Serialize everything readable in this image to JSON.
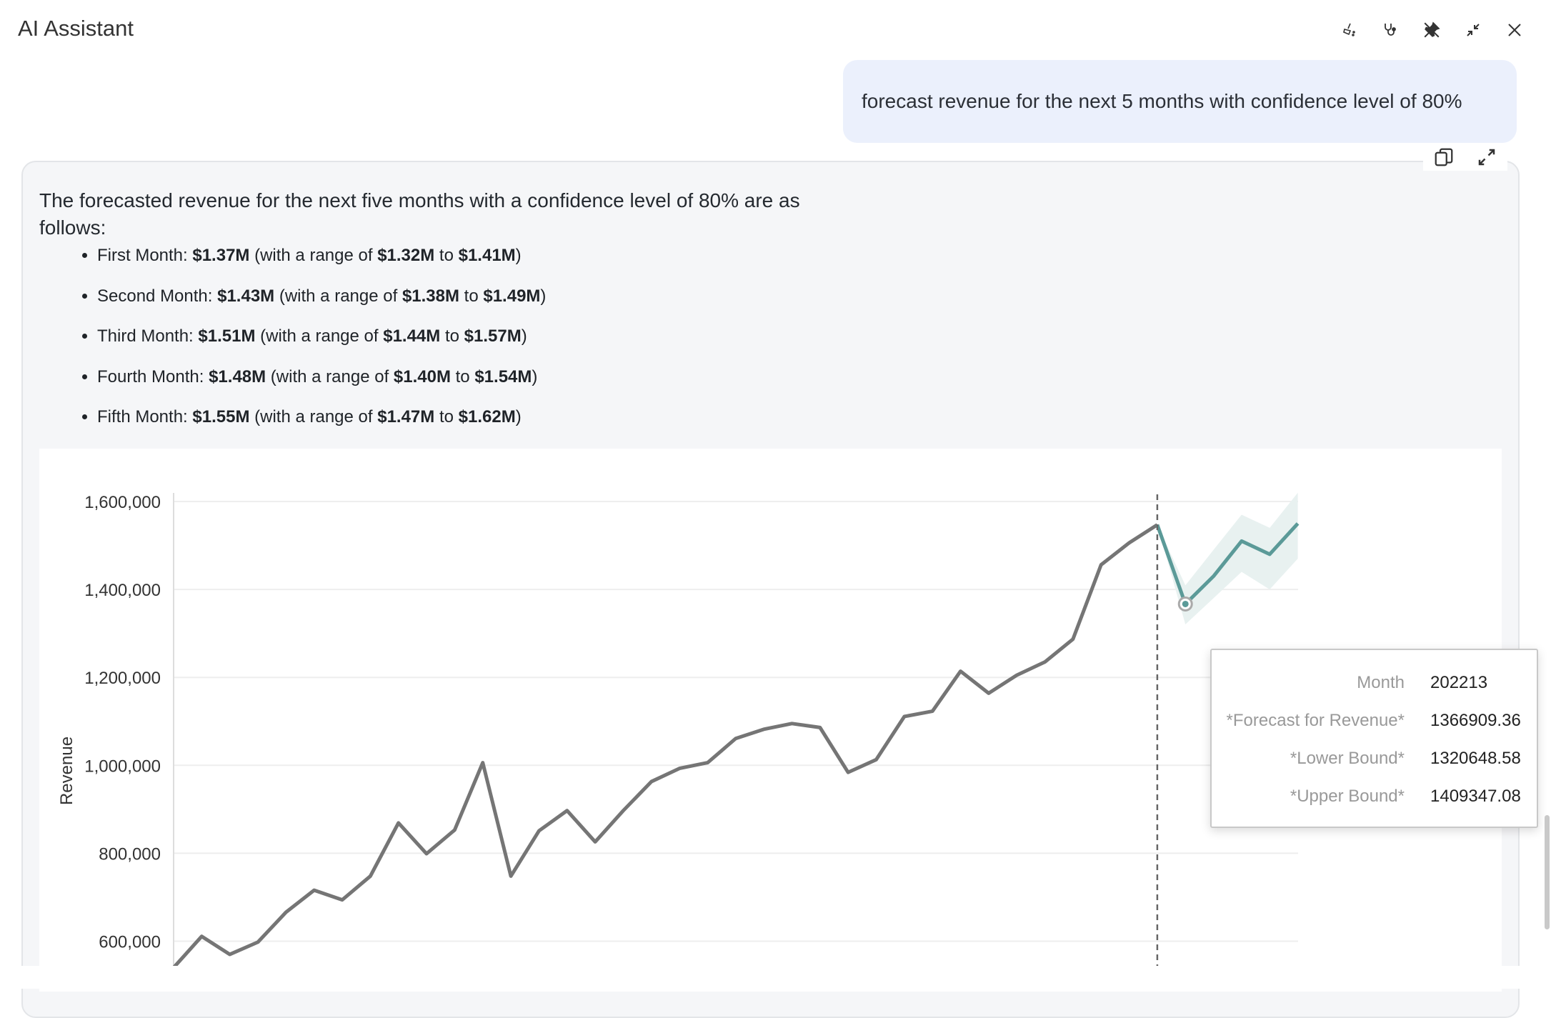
{
  "header": {
    "title": "AI Assistant",
    "icons": [
      "clean-icon",
      "stethoscope-icon",
      "unpin-icon",
      "minimize-icon",
      "close-icon"
    ]
  },
  "user_message": "forecast revenue for the next 5 months with confidence level of 80%",
  "response": {
    "intro": "The forecasted revenue for the next five months with a confidence level of 80% are as follows:",
    "items": [
      {
        "label": "First Month: ",
        "value": "$1.37M",
        "mid": " (with a range of ",
        "low": "$1.32M",
        "to": " to ",
        "high": "$1.41M",
        "end": ")"
      },
      {
        "label": "Second Month: ",
        "value": "$1.43M",
        "mid": " (with a range of ",
        "low": "$1.38M",
        "to": " to ",
        "high": "$1.49M",
        "end": ")"
      },
      {
        "label": "Third Month: ",
        "value": "$1.51M",
        "mid": " (with a range of ",
        "low": "$1.44M",
        "to": " to ",
        "high": "$1.57M",
        "end": ")"
      },
      {
        "label": "Fourth Month: ",
        "value": "$1.48M",
        "mid": " (with a range of ",
        "low": "$1.40M",
        "to": " to ",
        "high": "$1.54M",
        "end": ")"
      },
      {
        "label": "Fifth Month: ",
        "value": "$1.55M",
        "mid": " (with a range of ",
        "low": "$1.47M",
        "to": " to ",
        "high": "$1.62M",
        "end": ")"
      }
    ],
    "tools": [
      "copy-icon",
      "expand-icon"
    ]
  },
  "chart_data": {
    "type": "line",
    "ylabel": "Revenue",
    "xlabel": "",
    "ylim": [
      550000,
      1600000
    ],
    "yticks": [
      "600,000",
      "800,000",
      "1,000,000",
      "1,200,000",
      "1,400,000",
      "1,600,000"
    ],
    "ytick_values": [
      600000,
      800000,
      1000000,
      1200000,
      1400000,
      1600000
    ],
    "grid": true,
    "colors": {
      "actual": "#757575",
      "forecast": "#5b9a98",
      "band": "#e8f1f0"
    },
    "actual": [
      540000,
      611000,
      570000,
      598000,
      666000,
      716000,
      694000,
      748000,
      869000,
      799000,
      853000,
      1006000,
      748000,
      851000,
      897000,
      826000,
      897000,
      963000,
      993000,
      1006000,
      1061000,
      1082000,
      1095000,
      1086000,
      984000,
      1013000,
      1111000,
      1123000,
      1214000,
      1164000,
      1205000,
      1235000,
      1287000,
      1456000,
      1506000,
      1547000
    ],
    "forecast": [
      1366909.36,
      1430000,
      1510000,
      1480000,
      1550000
    ],
    "lower": [
      1320648.58,
      1380000,
      1440000,
      1400000,
      1470000
    ],
    "upper": [
      1409347.08,
      1490000,
      1570000,
      1540000,
      1620000
    ]
  },
  "tooltip": {
    "rows": [
      {
        "key": "Month",
        "value": "202213"
      },
      {
        "key": "*Forecast for Revenue*",
        "value": "1366909.36"
      },
      {
        "key": "*Lower Bound*",
        "value": "1320648.58"
      },
      {
        "key": "*Upper Bound*",
        "value": "1409347.08"
      }
    ]
  }
}
